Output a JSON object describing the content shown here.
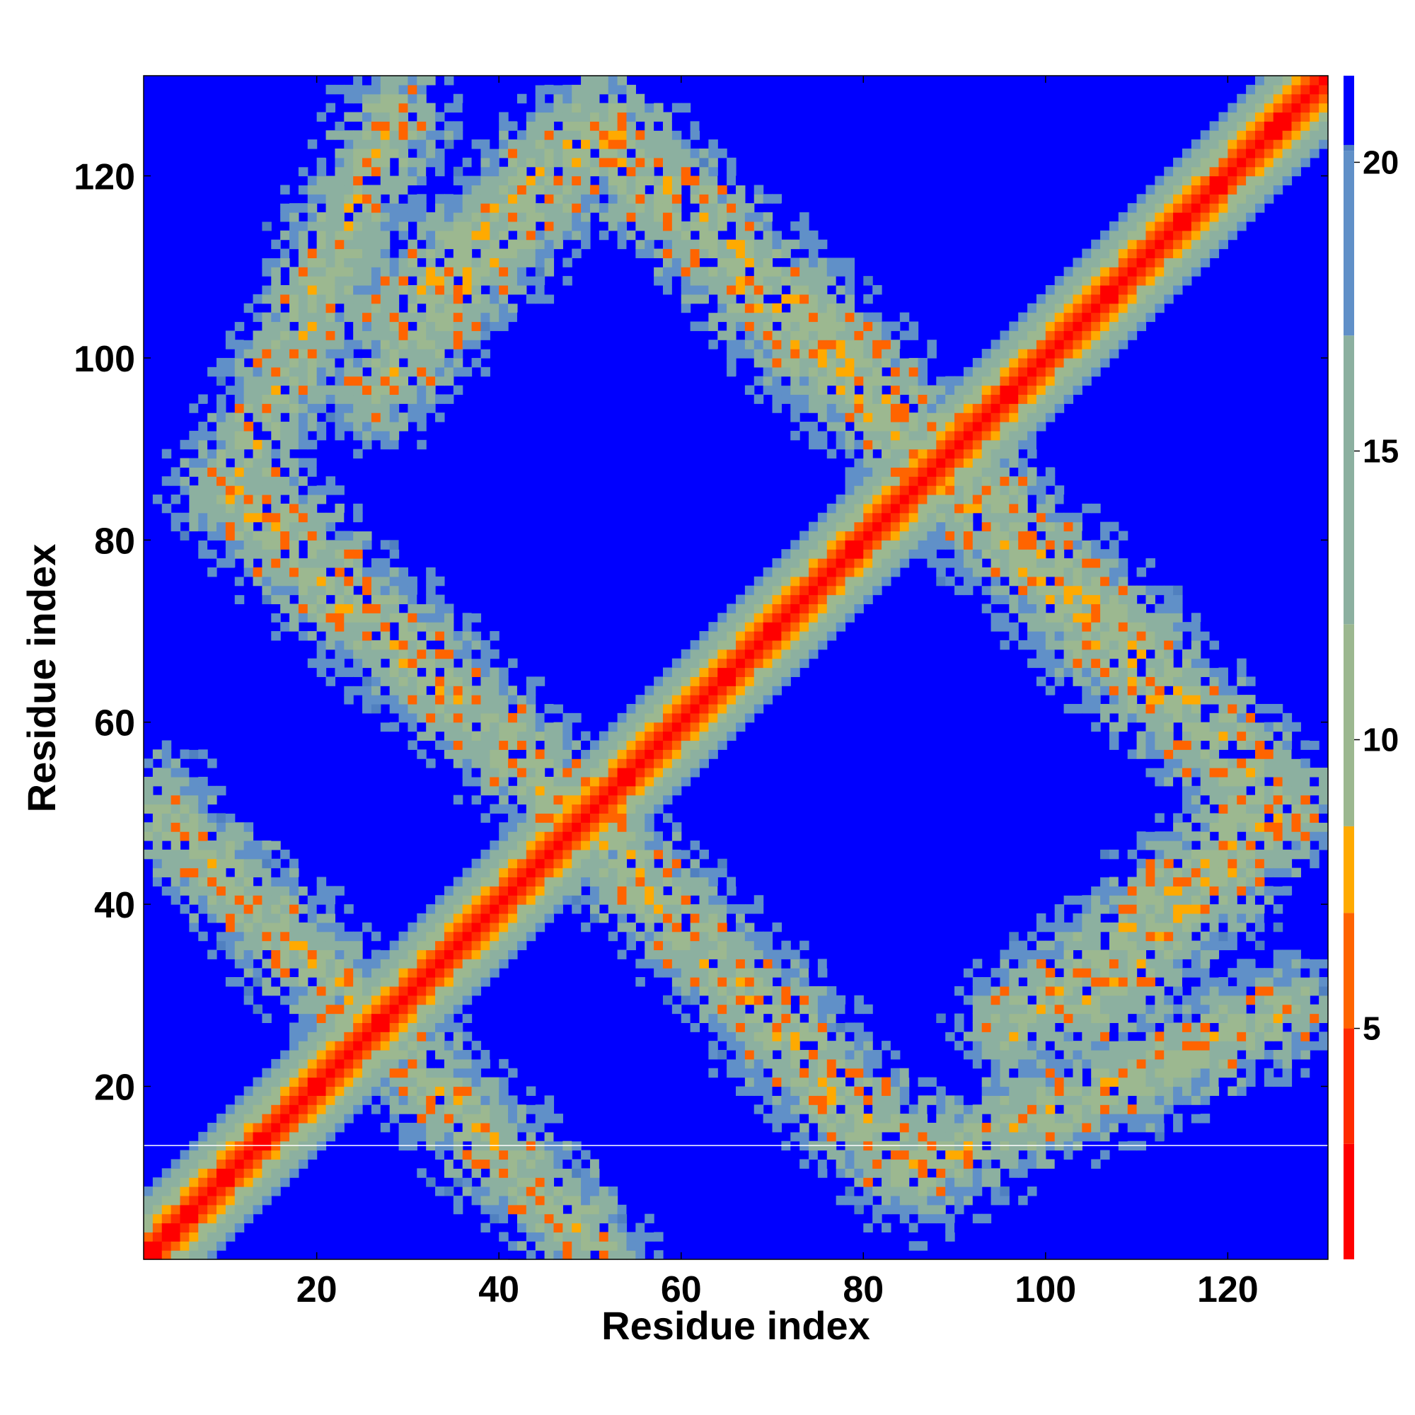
{
  "chart_data": {
    "type": "heatmap",
    "title": "",
    "xlabel": "Residue index",
    "ylabel": "Residue index",
    "xlim": [
      1,
      131
    ],
    "ylim": [
      1,
      131
    ],
    "xticks": [
      "20",
      "40",
      "60",
      "80",
      "100",
      "120"
    ],
    "yticks": [
      "20",
      "40",
      "60",
      "80",
      "100",
      "120"
    ],
    "colorbar": {
      "range": [
        1,
        21.5
      ],
      "ticks": [
        "5",
        "10",
        "15",
        "20"
      ],
      "stops": [
        {
          "value": 1,
          "color": "#ff0000"
        },
        {
          "value": 3,
          "color": "#ff2a00"
        },
        {
          "value": 5,
          "color": "#ff6400"
        },
        {
          "value": 7,
          "color": "#ffaa00"
        },
        {
          "value": 8.5,
          "color": "#9cb890"
        },
        {
          "value": 12,
          "color": "#8cb0a0"
        },
        {
          "value": 17,
          "color": "#6090c8"
        },
        {
          "value": 20.2,
          "color": "#5080c0"
        },
        {
          "value": 20.3,
          "color": "#0000ff"
        },
        {
          "value": 21.5,
          "color": "#0000ff"
        }
      ]
    },
    "background_color": "#0000ff",
    "matrix_description": "Symmetric residue distance map; near-zero values along the main diagonal, off-diagonal contact bands forming two diamond-shaped loops, values above 20 shown as saturated blue.",
    "diagonal": {
      "width_residues": 14
    },
    "contact_bands": [
      {
        "from": [
          2,
          50
        ],
        "to": [
          50,
          2
        ]
      },
      {
        "from": [
          10,
          84
        ],
        "to": [
          50,
          48
        ]
      },
      {
        "from": [
          28,
          104
        ],
        "to": [
          50,
          126
        ]
      },
      {
        "from": [
          50,
          126
        ],
        "to": [
          88,
          90
        ]
      },
      {
        "from": [
          48,
          50
        ],
        "to": [
          86,
          10
        ]
      },
      {
        "from": [
          88,
          86
        ],
        "to": [
          124,
          50
        ]
      },
      {
        "from": [
          96,
          26
        ],
        "to": [
          124,
          50
        ]
      },
      {
        "from": [
          84,
          10
        ],
        "to": [
          126,
          28
        ]
      }
    ],
    "reference_line": {
      "y": 13.5
    }
  }
}
